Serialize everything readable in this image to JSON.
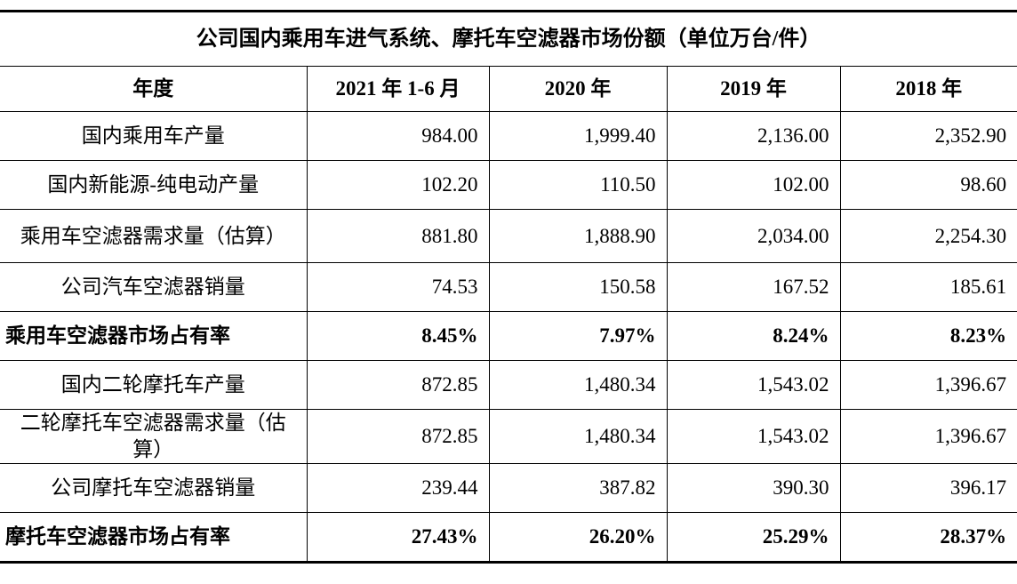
{
  "table": {
    "title": "公司国内乘用车进气系统、摩托车空滤器市场份额（单位万台/件）",
    "header": [
      "年度",
      "2021 年 1-6 月",
      "2020 年",
      "2019 年",
      "2018 年"
    ],
    "rows": [
      [
        "国内乘用车产量",
        "984.00",
        "1,999.40",
        "2,136.00",
        "2,352.90"
      ],
      [
        "国内新能源-纯电动产量",
        "102.20",
        "110.50",
        "102.00",
        "98.60"
      ],
      [
        "乘用车空滤器需求量（估算）",
        "881.80",
        "1,888.90",
        "2,034.00",
        "2,254.30"
      ],
      [
        "公司汽车空滤器销量",
        "74.53",
        "150.58",
        "167.52",
        "185.61"
      ],
      [
        "乘用车空滤器市场占有率",
        "8.45%",
        "7.97%",
        "8.24%",
        "8.23%"
      ],
      [
        "国内二轮摩托车产量",
        "872.85",
        "1,480.34",
        "1,543.02",
        "1,396.67"
      ],
      [
        "二轮摩托车空滤器需求量（估算）",
        "872.85",
        "1,480.34",
        "1,543.02",
        "1,396.67"
      ],
      [
        "公司摩托车空滤器销量",
        "239.44",
        "387.82",
        "390.30",
        "396.17"
      ],
      [
        "摩托车空滤器市场占有率",
        "27.43%",
        "26.20%",
        "25.29%",
        "28.37%"
      ]
    ]
  }
}
